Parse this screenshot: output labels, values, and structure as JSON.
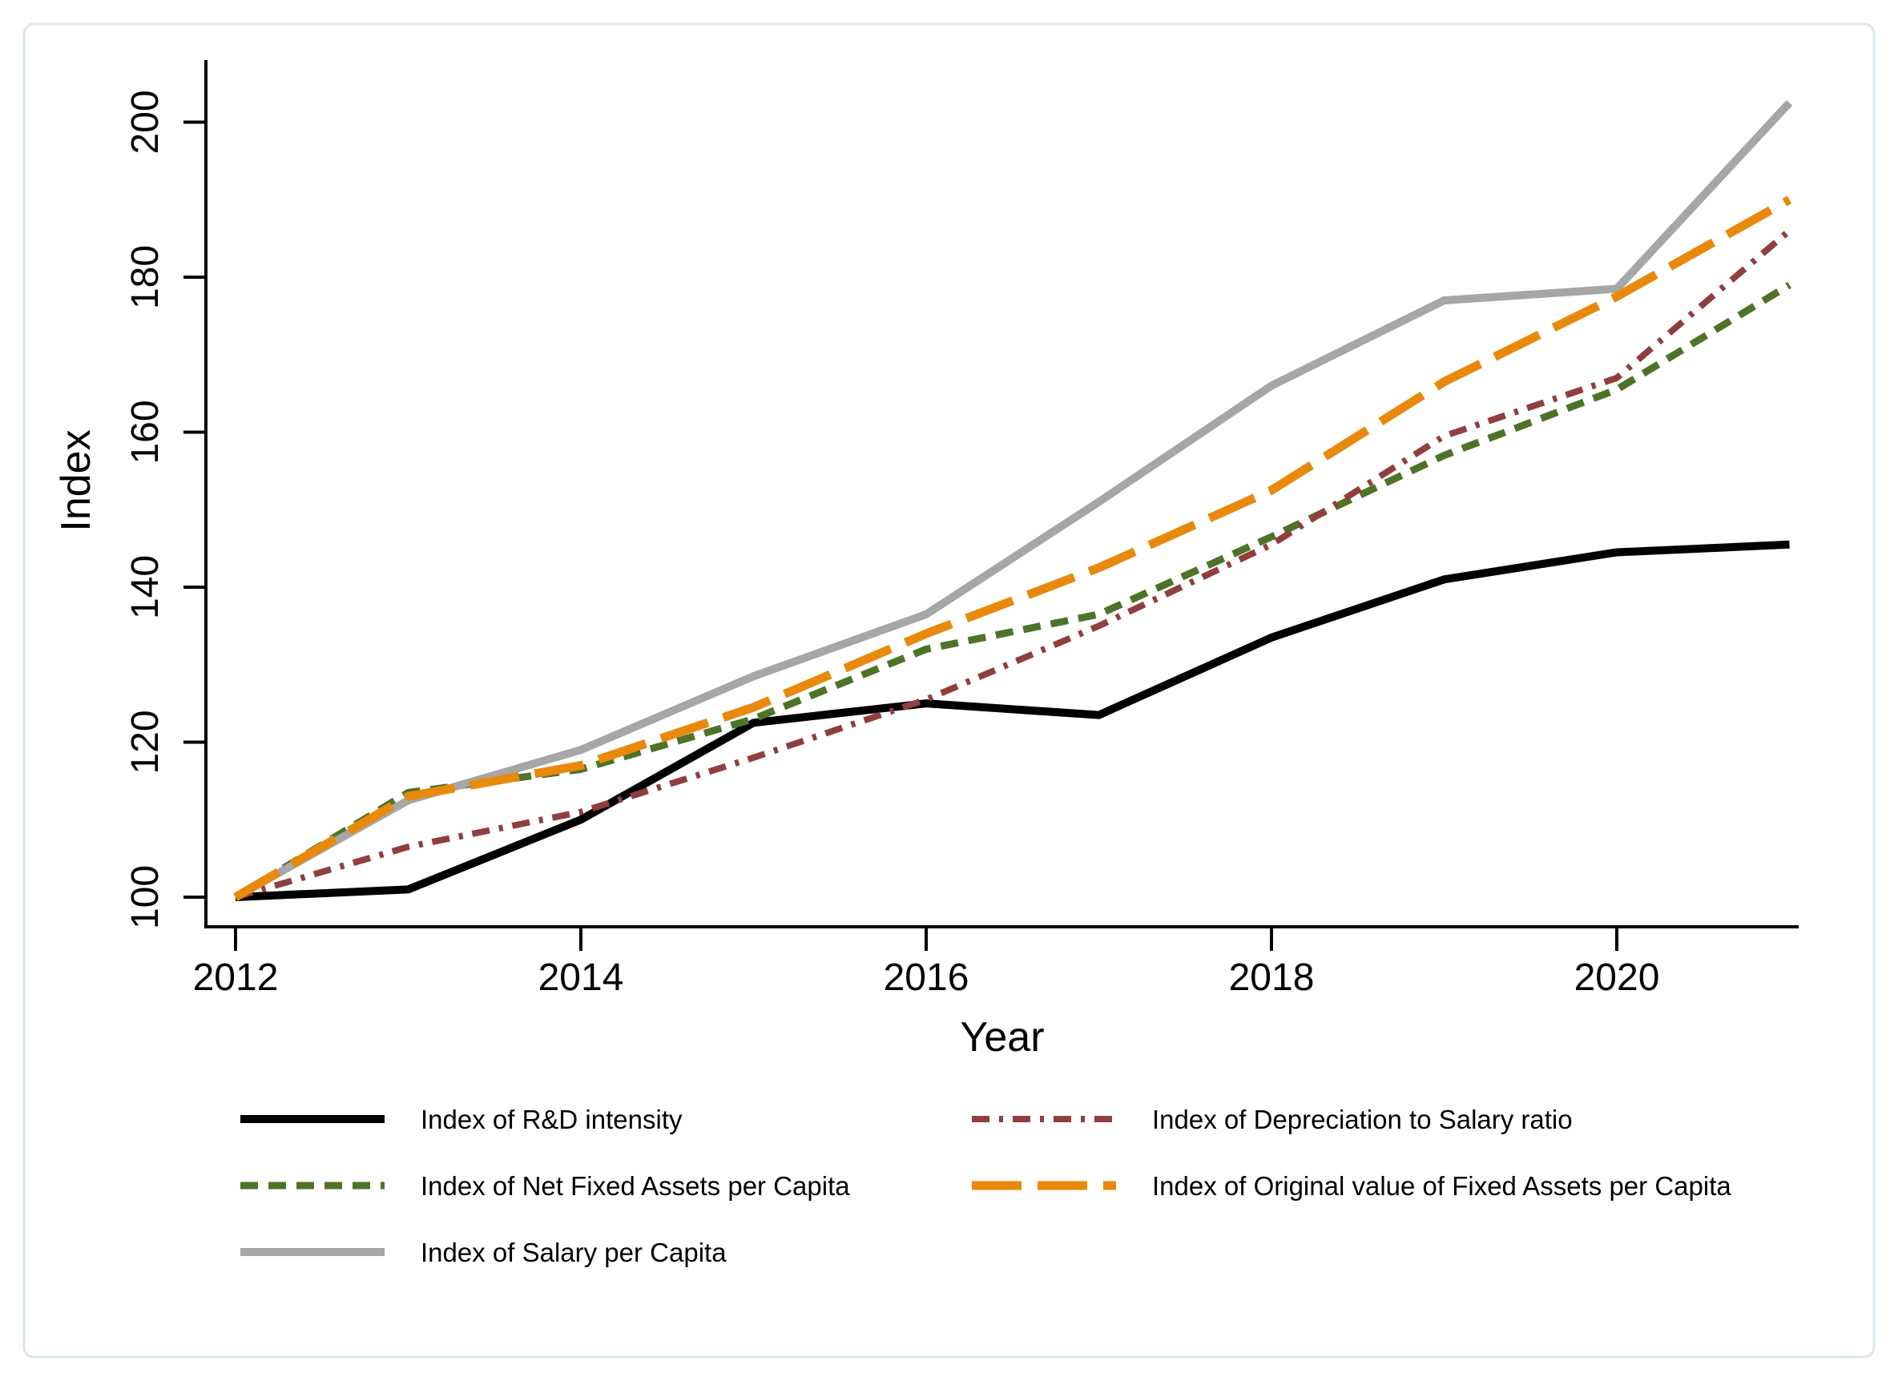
{
  "figure": {
    "frame_color": "#d9e5ec",
    "background": "#ffffff"
  },
  "chart_data": {
    "type": "line",
    "title": "",
    "xlabel": "Year",
    "ylabel": "Index",
    "x": [
      2012,
      2013,
      2014,
      2015,
      2016,
      2017,
      2018,
      2019,
      2020,
      2021
    ],
    "x_ticks": [
      2012,
      2014,
      2016,
      2018,
      2020
    ],
    "y_ticks": [
      100,
      120,
      140,
      160,
      180,
      200
    ],
    "xlim": [
      2011.8,
      2021.1
    ],
    "ylim": [
      100,
      208
    ],
    "grid": false,
    "legend_position": "below-two-columns",
    "series": [
      {
        "name": "Index of R&D intensity",
        "color": "#000000",
        "dash": "solid",
        "values": [
          100,
          101,
          110,
          122.5,
          125,
          123.5,
          133.5,
          141,
          144.5,
          145.5
        ]
      },
      {
        "name": "Index of  Net Fixed Assets per Capita",
        "color": "#4d7328",
        "dash": "short-dash",
        "values": [
          100,
          113.5,
          116.5,
          123,
          132,
          136.5,
          146.5,
          157,
          165.5,
          179
        ]
      },
      {
        "name": "Index of Salary per Capita",
        "color": "#a6a6a6",
        "dash": "solid",
        "values": [
          100,
          112.5,
          119,
          128.5,
          136.5,
          151,
          166,
          177,
          178.5,
          202.5
        ]
      },
      {
        "name": "Index of Depreciation to Salary ratio",
        "color": "#913e3e",
        "dash": "dash-dot",
        "values": [
          100,
          106.5,
          111,
          118,
          125.5,
          135,
          145.5,
          159.5,
          167,
          186
        ]
      },
      {
        "name": "Index of Original value of Fixed Assets per Capita",
        "color": "#e8890c",
        "dash": "long-dash",
        "values": [
          100,
          113,
          117,
          124.5,
          134,
          142.5,
          152.5,
          166.5,
          177.5,
          190
        ]
      }
    ]
  }
}
